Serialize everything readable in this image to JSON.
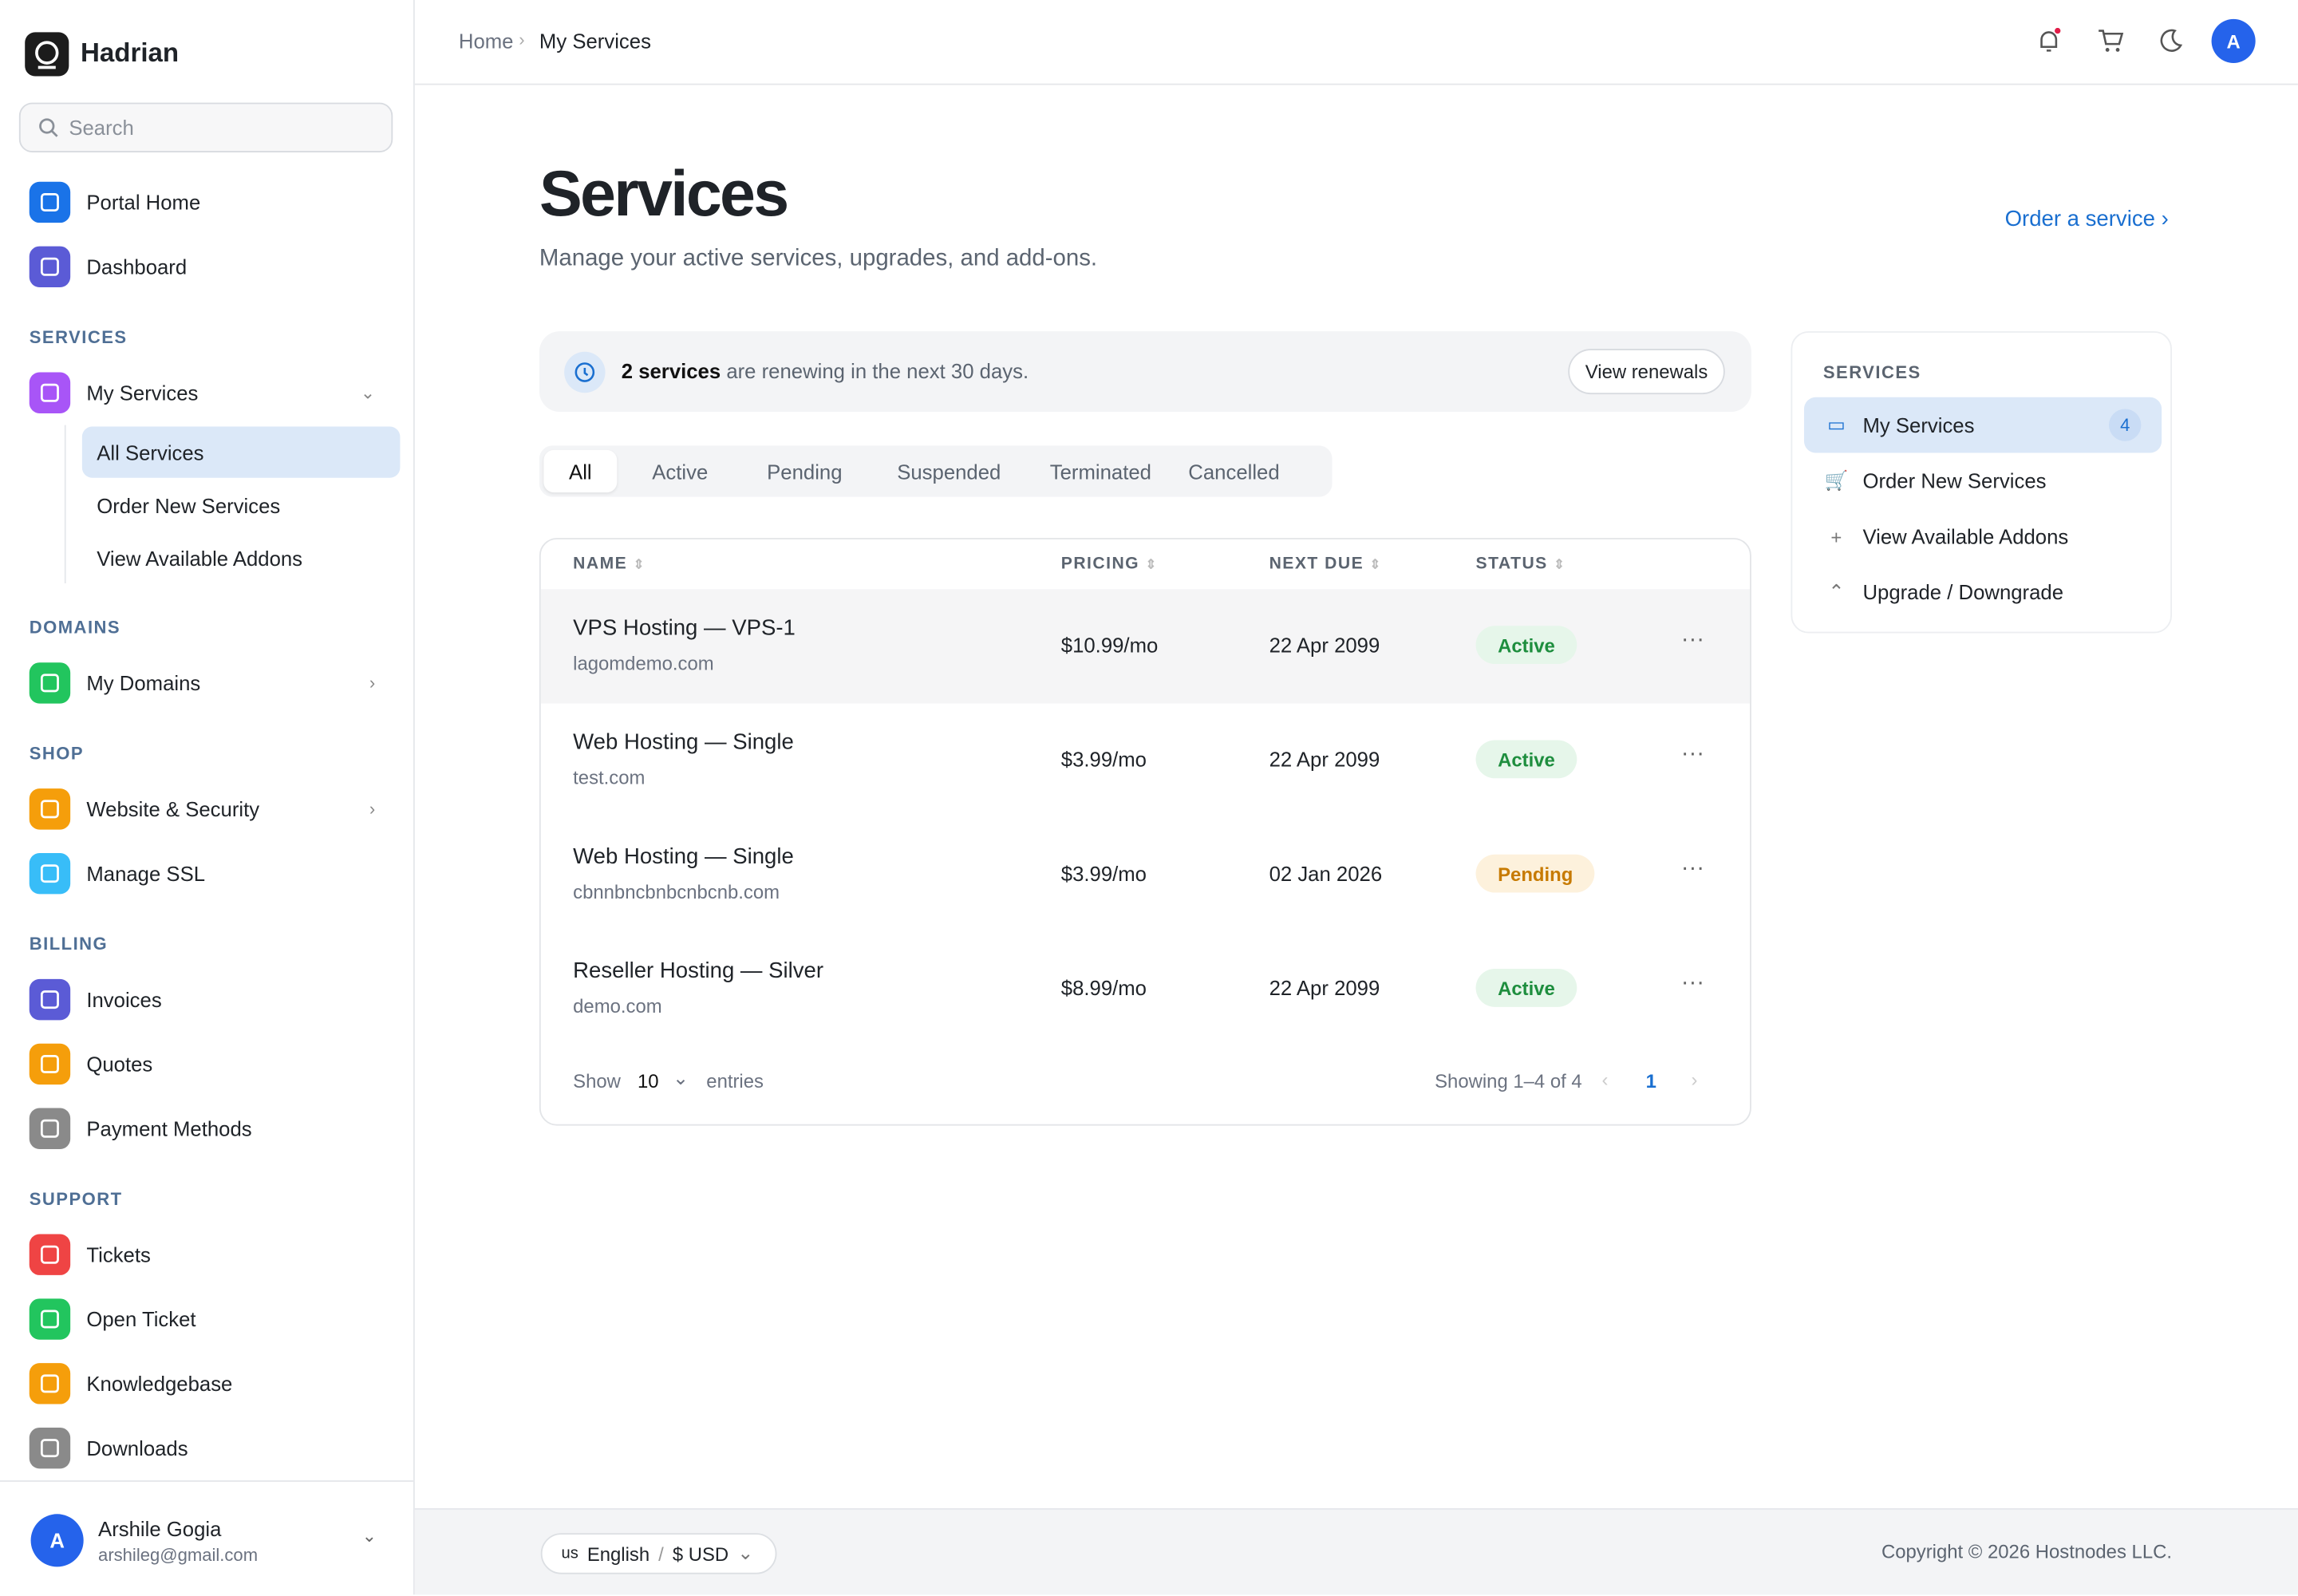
{
  "brand": "Hadrian",
  "search_placeholder": "Search",
  "sidebar": {
    "top": [
      {
        "label": "Portal Home"
      },
      {
        "label": "Dashboard"
      }
    ],
    "sections": [
      {
        "title": "SERVICES",
        "items": [
          {
            "label": "My Services",
            "children": [
              "All Services",
              "Order New Services",
              "View Available Addons"
            ]
          }
        ]
      },
      {
        "title": "DOMAINS",
        "items": [
          {
            "label": "My Domains"
          }
        ]
      },
      {
        "title": "SHOP",
        "items": [
          {
            "label": "Website & Security"
          },
          {
            "label": "Manage SSL"
          }
        ]
      },
      {
        "title": "BILLING",
        "items": [
          {
            "label": "Invoices"
          },
          {
            "label": "Quotes"
          },
          {
            "label": "Payment Methods"
          }
        ]
      },
      {
        "title": "SUPPORT",
        "items": [
          {
            "label": "Tickets"
          },
          {
            "label": "Open Ticket"
          },
          {
            "label": "Knowledgebase"
          },
          {
            "label": "Downloads"
          }
        ]
      }
    ]
  },
  "user": {
    "initial": "A",
    "name": "Arshile Gogia",
    "email": "arshileg@gmail.com"
  },
  "breadcrumb": [
    "Home",
    "My Services"
  ],
  "avatar": "A",
  "page": {
    "title": "Services",
    "subtitle": "Manage your active services, upgrades, and add-ons.",
    "order_link": "Order a service"
  },
  "banner": {
    "count": "2 services",
    "text": "are renewing in the next 30 days.",
    "button": "View renewals"
  },
  "tabs": [
    "All",
    "Active",
    "Pending",
    "Suspended",
    "Terminated",
    "Cancelled"
  ],
  "table": {
    "columns": [
      "NAME",
      "PRICING",
      "NEXT DUE",
      "STATUS"
    ],
    "rows": [
      {
        "name": "VPS Hosting — VPS-1",
        "domain": "lagomdemo.com",
        "pricing": "$10.99/mo",
        "next_due": "22 Apr 2099",
        "status": "Active"
      },
      {
        "name": "Web Hosting — Single",
        "domain": "test.com",
        "pricing": "$3.99/mo",
        "next_due": "22 Apr 2099",
        "status": "Active"
      },
      {
        "name": "Web Hosting — Single",
        "domain": "cbnnbncbnbcnbcnb.com",
        "pricing": "$3.99/mo",
        "next_due": "02 Jan 2026",
        "status": "Pending"
      },
      {
        "name": "Reseller Hosting — Silver",
        "domain": "demo.com",
        "pricing": "$8.99/mo",
        "next_due": "22 Apr 2099",
        "status": "Active"
      }
    ],
    "show": "Show",
    "page_size": 10,
    "entries": "entries",
    "showing": "Showing 1–4 of 4",
    "page": 1
  },
  "panel": {
    "title": "SERVICES",
    "items": [
      {
        "label": "My Services",
        "badge": 4
      },
      {
        "label": "Order New Services"
      },
      {
        "label": "View Available Addons"
      },
      {
        "label": "Upgrade / Downgrade"
      }
    ]
  },
  "footer": {
    "lang_code": "us",
    "language": "English",
    "separator": "/",
    "currency": "$ USD",
    "copyright": "Copyright © 2026 Hostnodes LLC."
  }
}
